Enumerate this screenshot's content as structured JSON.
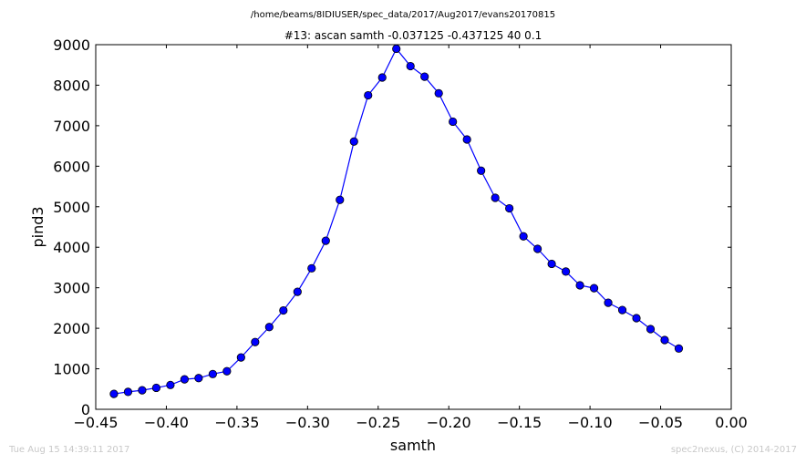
{
  "chart_data": {
    "type": "line",
    "suptitle": "/home/beams/8IDIUSER/spec_data/2017/Aug2017/evans20170815",
    "title": "#13: ascan  samth -0.037125 -0.437125  40 0.1",
    "xlabel": "samth",
    "ylabel": "pind3",
    "xlim": [
      -0.45,
      0.0
    ],
    "ylim": [
      0,
      9000
    ],
    "xticks": [
      -0.45,
      -0.4,
      -0.35,
      -0.3,
      -0.25,
      -0.2,
      -0.15,
      -0.1,
      -0.05,
      0.0
    ],
    "xtick_labels": [
      "−0.45",
      "−0.40",
      "−0.35",
      "−0.30",
      "−0.25",
      "−0.20",
      "−0.15",
      "−0.10",
      "−0.05",
      "0.00"
    ],
    "yticks": [
      0,
      1000,
      2000,
      3000,
      4000,
      5000,
      6000,
      7000,
      8000,
      9000
    ],
    "ytick_labels": [
      "0",
      "1000",
      "2000",
      "3000",
      "4000",
      "5000",
      "6000",
      "7000",
      "8000",
      "9000"
    ],
    "grid": false,
    "color": "#0000ff",
    "x": [
      -0.437125,
      -0.427125,
      -0.417125,
      -0.407125,
      -0.397125,
      -0.387125,
      -0.377125,
      -0.367125,
      -0.357125,
      -0.347125,
      -0.337125,
      -0.327125,
      -0.317125,
      -0.307125,
      -0.297125,
      -0.287125,
      -0.277125,
      -0.267125,
      -0.257125,
      -0.247125,
      -0.237125,
      -0.227125,
      -0.217125,
      -0.207125,
      -0.197125,
      -0.187125,
      -0.177125,
      -0.167125,
      -0.157125,
      -0.147125,
      -0.137125,
      -0.127125,
      -0.117125,
      -0.107125,
      -0.097125,
      -0.087125,
      -0.077125,
      -0.067125,
      -0.057125,
      -0.047125,
      -0.037125
    ],
    "y": [
      380,
      430,
      470,
      530,
      600,
      740,
      770,
      870,
      940,
      1280,
      1660,
      2030,
      2440,
      2900,
      3480,
      4160,
      5170,
      6610,
      7750,
      8190,
      8900,
      8470,
      8210,
      7800,
      7100,
      6660,
      5890,
      5220,
      4960,
      4270,
      3960,
      3590,
      3400,
      3060,
      2990,
      2630,
      2450,
      2250,
      1980,
      1710,
      1500
    ]
  },
  "footer": {
    "timestamp": "Tue Aug 15 14:39:11 2017",
    "credit": "spec2nexus, (C) 2014-2017"
  }
}
